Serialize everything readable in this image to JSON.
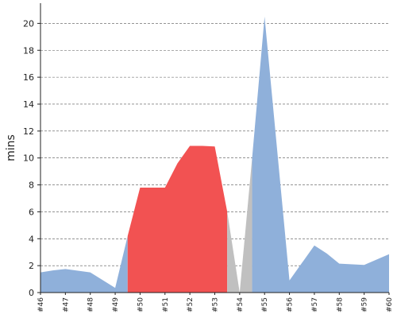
{
  "chart_data": {
    "type": "area",
    "title": "",
    "xlabel": "",
    "ylabel": "mins",
    "categories": [
      "#46",
      "#47",
      "#48",
      "#49",
      "#50",
      "#51",
      "#52",
      "#53",
      "#54",
      "#55",
      "#56",
      "#57",
      "#58",
      "#59",
      "#60"
    ],
    "x": [
      46,
      46.5,
      47,
      48,
      49,
      49.5,
      50,
      51,
      51.5,
      52,
      52.5,
      53,
      53.5,
      54,
      54.5,
      55,
      56,
      57,
      57.5,
      58,
      59,
      60
    ],
    "values": [
      1.5,
      1.65,
      1.75,
      1.5,
      0.35,
      4.2,
      7.8,
      7.8,
      9.6,
      10.9,
      10.9,
      10.85,
      6.0,
      0.0,
      10.0,
      20.5,
      0.9,
      3.5,
      2.9,
      2.15,
      2.05,
      2.85
    ],
    "segments": [
      {
        "from": 46,
        "to": 49.5,
        "color": "#8fb0da"
      },
      {
        "from": 49.5,
        "to": 53.5,
        "color": "#f25252"
      },
      {
        "from": 53.5,
        "to": 54.5,
        "color": "#c0c0c0"
      },
      {
        "from": 54.5,
        "to": 60,
        "color": "#8fb0da"
      }
    ],
    "ylim": [
      0,
      21.5
    ],
    "yticks": [
      0,
      2,
      4,
      6,
      8,
      10,
      12,
      14,
      16,
      18,
      20
    ],
    "grid": true,
    "legend": "none"
  }
}
